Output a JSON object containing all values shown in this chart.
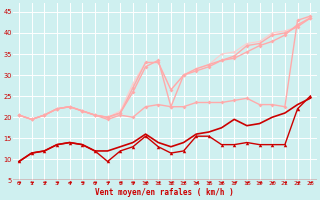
{
  "xlabel": "Vent moyen/en rafales ( km/h )",
  "ylim": [
    5,
    47
  ],
  "xlim": [
    -0.5,
    23.5
  ],
  "yticks": [
    5,
    10,
    15,
    20,
    25,
    30,
    35,
    40,
    45
  ],
  "xticks": [
    0,
    1,
    2,
    3,
    4,
    5,
    6,
    7,
    8,
    9,
    10,
    11,
    12,
    13,
    14,
    15,
    16,
    17,
    18,
    19,
    20,
    21,
    22,
    23
  ],
  "bg_color": "#cff0f0",
  "grid_color": "#ffffff",
  "series": [
    {
      "x": [
        0,
        1,
        2,
        3,
        4,
        5,
        6,
        7,
        8,
        9,
        10,
        11,
        12,
        13,
        14,
        15,
        16,
        17,
        18,
        19,
        20,
        21,
        22,
        23
      ],
      "y": [
        9.5,
        11.5,
        12,
        13.5,
        14,
        13.5,
        12,
        9.5,
        12,
        13,
        15.5,
        13,
        11.5,
        12,
        15.5,
        15.5,
        13.5,
        13.5,
        14,
        13.5,
        13.5,
        13.5,
        22,
        25
      ],
      "color": "#cc0000",
      "lw": 1.0,
      "marker": "^",
      "ms": 2.5,
      "zorder": 4
    },
    {
      "x": [
        0,
        1,
        2,
        3,
        4,
        5,
        6,
        7,
        8,
        9,
        10,
        11,
        12,
        13,
        14,
        15,
        16,
        17,
        18,
        19,
        20,
        21,
        22,
        23
      ],
      "y": [
        9.5,
        11.5,
        12,
        13.5,
        14,
        13.5,
        12,
        12,
        13,
        14,
        16,
        14,
        13,
        14,
        16,
        16.5,
        17.5,
        19.5,
        18,
        18.5,
        20,
        21,
        23,
        24.5
      ],
      "color": "#cc0000",
      "lw": 1.2,
      "marker": null,
      "ms": 0,
      "zorder": 3
    },
    {
      "x": [
        0,
        1,
        2,
        3,
        4,
        5,
        6,
        7,
        8,
        9,
        10,
        11,
        12,
        13,
        14,
        15,
        16,
        17,
        18,
        19,
        20,
        21,
        22,
        23
      ],
      "y": [
        20.5,
        19.5,
        20.5,
        22,
        22.5,
        21.5,
        20.5,
        19.5,
        20.5,
        20,
        22.5,
        23,
        22.5,
        22.5,
        23.5,
        23.5,
        23.5,
        24,
        24.5,
        23,
        23,
        22.5,
        43,
        44
      ],
      "color": "#ffaaaa",
      "lw": 1.0,
      "marker": "D",
      "ms": 2.0,
      "zorder": 4
    },
    {
      "x": [
        0,
        1,
        2,
        3,
        4,
        5,
        6,
        7,
        8,
        9,
        10,
        11,
        12,
        13,
        14,
        15,
        16,
        17,
        18,
        19,
        20,
        21,
        22,
        23
      ],
      "y": [
        20.5,
        19.5,
        20.5,
        22,
        22.5,
        21.5,
        20.5,
        20,
        21,
        26,
        32,
        33.5,
        22.5,
        30,
        31,
        32,
        33.5,
        34,
        35.5,
        37,
        38,
        39.5,
        42,
        43.5
      ],
      "color": "#ffaaaa",
      "lw": 1.0,
      "marker": "D",
      "ms": 2.0,
      "zorder": 4
    },
    {
      "x": [
        0,
        1,
        2,
        3,
        4,
        5,
        6,
        7,
        8,
        9,
        10,
        11,
        12,
        13,
        14,
        15,
        16,
        17,
        18,
        19,
        20,
        21,
        22,
        23
      ],
      "y": [
        20.5,
        19.5,
        20.5,
        22,
        22.5,
        21.5,
        20.5,
        20,
        21,
        27,
        33,
        33,
        26.5,
        30,
        31.5,
        32.5,
        33.5,
        34.5,
        37,
        37.5,
        39.5,
        40,
        41.5,
        43.5
      ],
      "color": "#ffaaaa",
      "lw": 1.0,
      "marker": "D",
      "ms": 2.0,
      "zorder": 4
    },
    {
      "x": [
        0,
        1,
        2,
        3,
        4,
        5,
        6,
        7,
        8,
        9,
        10,
        11,
        12,
        13,
        14,
        15,
        16,
        17,
        18,
        19,
        20,
        21,
        22,
        23
      ],
      "y": [
        20.5,
        19.5,
        20.5,
        22,
        22.5,
        21.5,
        20.5,
        20,
        21.5,
        28,
        33,
        33,
        26.5,
        30,
        31.5,
        32.5,
        35,
        35.5,
        37.5,
        38,
        40,
        40.5,
        41.5,
        44
      ],
      "color": "#ffcccc",
      "lw": 0.8,
      "marker": "D",
      "ms": 1.5,
      "zorder": 3
    }
  ],
  "n_arrows": 24
}
